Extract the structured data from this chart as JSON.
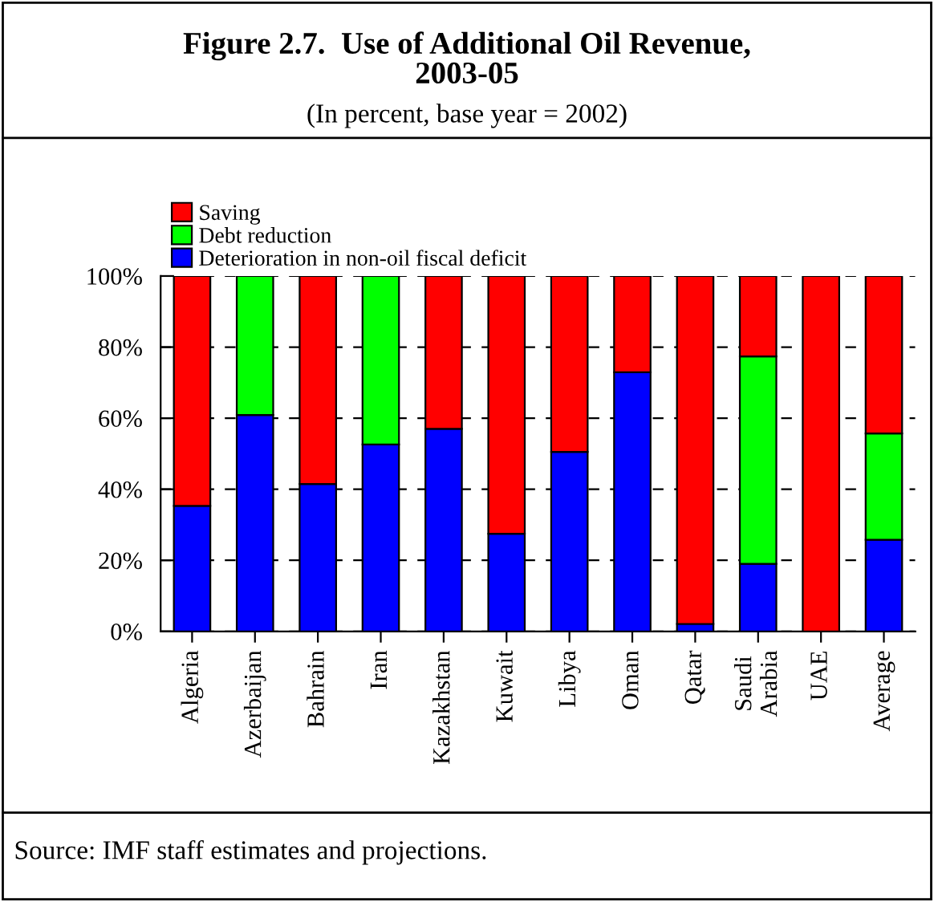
{
  "chart_data": {
    "type": "bar",
    "stacked": true,
    "title": "Figure 2.7.  Use of Additional Oil Revenue,\n2003-05",
    "subtitle": "(In percent, base year = 2002)",
    "categories": [
      "Algeria",
      "Azerbaijan",
      "Bahrain",
      "Iran",
      "Kazakhstan",
      "Kuwait",
      "Libya",
      "Oman",
      "Qatar",
      "Saudi\nArabia",
      "UAE",
      "Average"
    ],
    "series": [
      {
        "name": "Deterioration in non-oil fiscal deficit",
        "color": "#0000ff",
        "values": [
          35.3,
          60.9,
          41.5,
          52.6,
          57.0,
          27.5,
          50.5,
          72.9,
          2.1,
          19.0,
          0,
          25.8
        ]
      },
      {
        "name": "Debt reduction",
        "color": "#00ff00",
        "values": [
          0,
          39.1,
          0,
          47.4,
          0,
          0,
          0,
          0,
          0,
          58.4,
          0,
          29.9
        ]
      },
      {
        "name": "Saving",
        "color": "#ff0000",
        "values": [
          64.7,
          0,
          58.5,
          0,
          43.0,
          72.5,
          49.5,
          27.1,
          97.9,
          22.6,
          100,
          44.3
        ]
      }
    ],
    "ylim": [
      0,
      100
    ],
    "yticks": [
      {
        "value": 0,
        "label": "0%"
      },
      {
        "value": 20,
        "label": "20%"
      },
      {
        "value": 40,
        "label": "40%"
      },
      {
        "value": 60,
        "label": "60%"
      },
      {
        "value": 80,
        "label": "80%"
      },
      {
        "value": 100,
        "label": "100%"
      }
    ],
    "grid": "y",
    "legend": "top left",
    "annotations": [
      "Source: IMF staff estimates and projections."
    ]
  }
}
